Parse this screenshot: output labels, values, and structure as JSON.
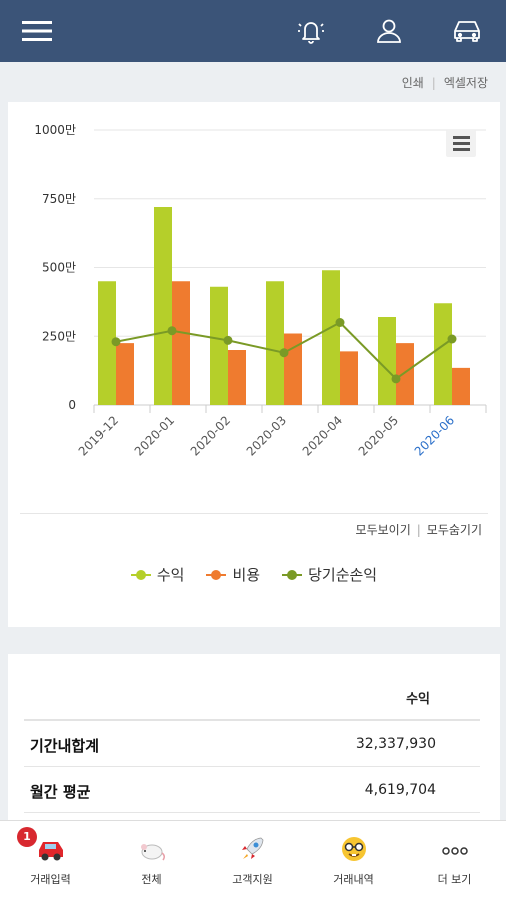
{
  "header": {
    "icons": [
      "hamburger-menu-icon",
      "bell-icon",
      "user-icon",
      "car-icon"
    ],
    "bg_color": "#3b5478"
  },
  "top_links": {
    "print": "인쇄",
    "excel": "엑셀저장"
  },
  "chart_data": {
    "type": "bar",
    "categories": [
      "2019-12",
      "2020-01",
      "2020-02",
      "2020-03",
      "2020-04",
      "2020-05",
      "2020-06"
    ],
    "y_ticks": [
      "1000만",
      "750만",
      "500만",
      "250만",
      "0"
    ],
    "ylim": [
      0,
      10000000
    ],
    "series": [
      {
        "name": "수익",
        "type": "bar",
        "color": "#b5cf2a",
        "values": [
          4500000,
          7200000,
          4300000,
          4500000,
          4900000,
          3200000,
          3700000
        ]
      },
      {
        "name": "비용",
        "type": "bar",
        "color": "#ef7b2f",
        "values": [
          2250000,
          4500000,
          2000000,
          2600000,
          1950000,
          2250000,
          1350000
        ]
      },
      {
        "name": "당기순손익",
        "type": "line",
        "color": "#7a9a26",
        "values": [
          2300000,
          2700000,
          2350000,
          1900000,
          3000000,
          950000,
          2400000
        ]
      }
    ],
    "highlighted_category": "2020-06",
    "highlight_color": "#2a6fc9",
    "grid": true,
    "legend_position": "bottom"
  },
  "chart_controls": {
    "show_all": "모두보이기",
    "hide_all": "모두숨기기"
  },
  "summary_table": {
    "column_header": "수익",
    "rows": [
      {
        "label": "기간내합계",
        "value": "32,337,930"
      },
      {
        "label": "월간 평균",
        "value": "4,619,704"
      }
    ]
  },
  "bottom_nav": {
    "badge": "1",
    "items": [
      {
        "label": "거래입력",
        "icon": "car-icon"
      },
      {
        "label": "전체",
        "icon": "rat-icon"
      },
      {
        "label": "고객지원",
        "icon": "rocket-icon"
      },
      {
        "label": "거래내역",
        "icon": "nerd-face-icon"
      },
      {
        "label": "더 보기",
        "icon": "more-dots-icon"
      }
    ]
  }
}
